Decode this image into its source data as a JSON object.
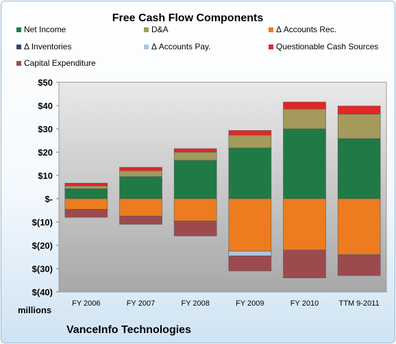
{
  "chart_data": {
    "type": "bar",
    "title": "Free Cash Flow Components",
    "subtitle": "VanceInfo Technologies",
    "ylabel": "millions",
    "ylim": [
      -40,
      50
    ],
    "yticks": [
      50,
      40,
      30,
      20,
      10,
      0,
      -10,
      -20,
      -30,
      -40
    ],
    "ytick_labels": [
      "$50",
      "$40",
      "$30",
      "$20",
      "$10",
      "$-",
      "$(10)",
      "$(20)",
      "$(30)",
      "$(40)"
    ],
    "categories": [
      "FY 2006",
      "FY 2007",
      "FY 2008",
      "FY 2009",
      "FY 2010",
      "TTM 9-2011"
    ],
    "series": [
      {
        "name": "Net Income",
        "color": "#1f7a45",
        "values": [
          4.3,
          9.5,
          16.5,
          21.8,
          30.0,
          25.8
        ]
      },
      {
        "name": "D&A",
        "color": "#a39a5c",
        "values": [
          1.2,
          2.5,
          3.5,
          5.5,
          8.5,
          10.5
        ]
      },
      {
        "name": "Δ Accounts Rec.",
        "color": "#ec7c1f",
        "values": [
          -4.5,
          -7.5,
          -9.5,
          -22.5,
          -22.0,
          -24.0
        ]
      },
      {
        "name": "Δ Inventories",
        "color": "#2e4a68",
        "values": [
          0,
          0,
          0,
          0,
          0,
          0
        ]
      },
      {
        "name": "Δ Accounts Pay.",
        "color": "#a9c6e4",
        "values": [
          0,
          0,
          0,
          -2.0,
          0,
          0
        ]
      },
      {
        "name": "Questionable Cash Sources",
        "color": "#e32626",
        "values": [
          1.2,
          1.5,
          1.5,
          2.0,
          3.0,
          3.5
        ]
      },
      {
        "name": "Capital Expenditure",
        "color": "#9c4a4e",
        "values": [
          -3.5,
          -3.5,
          -6.5,
          -6.5,
          -12.0,
          -9.0
        ]
      }
    ],
    "grid": false,
    "legend_position": "top"
  }
}
